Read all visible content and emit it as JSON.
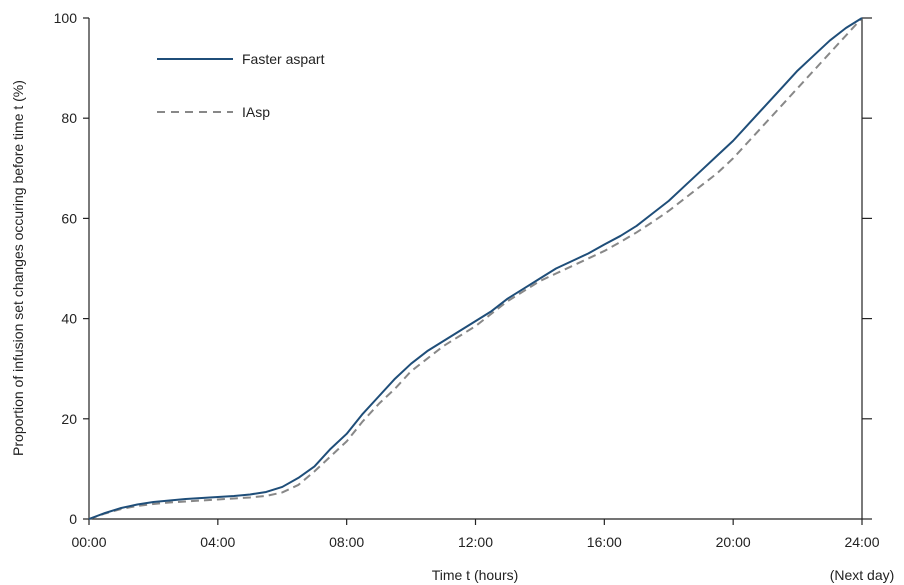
{
  "chart_data": {
    "type": "line",
    "xlabel": "Time t (hours)",
    "xlabel_suffix": "(Next day)",
    "ylabel": "Proportion of infusion set changes occuring before time t (%)",
    "xlim": [
      0,
      24
    ],
    "ylim": [
      0,
      100
    ],
    "x_ticks": [
      {
        "value": 0,
        "label": "00:00"
      },
      {
        "value": 4,
        "label": "04:00"
      },
      {
        "value": 8,
        "label": "08:00"
      },
      {
        "value": 12,
        "label": "12:00"
      },
      {
        "value": 16,
        "label": "16:00"
      },
      {
        "value": 20,
        "label": "20:00"
      },
      {
        "value": 24,
        "label": "24:00"
      }
    ],
    "y_ticks": [
      {
        "value": 0,
        "label": "0"
      },
      {
        "value": 20,
        "label": "20"
      },
      {
        "value": 40,
        "label": "40"
      },
      {
        "value": 60,
        "label": "60"
      },
      {
        "value": 80,
        "label": "80"
      },
      {
        "value": 100,
        "label": "100"
      }
    ],
    "grid": false,
    "legend_position": "top-left",
    "series": [
      {
        "name": "Faster aspart",
        "color": "#1f4e79",
        "style": "solid",
        "x": [
          0,
          0.5,
          1,
          1.5,
          2,
          2.5,
          3,
          3.5,
          4,
          4.5,
          5,
          5.5,
          6,
          6.5,
          7,
          7.5,
          8,
          8.5,
          9,
          9.5,
          10,
          10.5,
          11,
          11.5,
          12,
          12.5,
          13,
          13.5,
          14,
          14.5,
          15,
          15.5,
          16,
          16.5,
          17,
          17.5,
          18,
          18.5,
          19,
          19.5,
          20,
          20.5,
          21,
          21.5,
          22,
          22.5,
          23,
          23.5,
          24
        ],
        "y": [
          0,
          1.2,
          2.2,
          2.9,
          3.4,
          3.7,
          4.0,
          4.2,
          4.4,
          4.6,
          4.9,
          5.4,
          6.4,
          8.2,
          10.5,
          14.0,
          17.0,
          21.0,
          24.5,
          28.0,
          31.0,
          33.5,
          35.5,
          37.5,
          39.5,
          41.5,
          44.0,
          46.0,
          48.0,
          50.0,
          51.5,
          53.0,
          54.8,
          56.5,
          58.5,
          61.0,
          63.5,
          66.5,
          69.5,
          72.5,
          75.5,
          79.0,
          82.5,
          86.0,
          89.5,
          92.5,
          95.5,
          98.0,
          100
        ]
      },
      {
        "name": "IAsp",
        "color": "#888888",
        "style": "dashed",
        "x": [
          0,
          0.5,
          1,
          1.5,
          2,
          2.5,
          3,
          3.5,
          4,
          4.5,
          5,
          5.5,
          6,
          6.5,
          7,
          7.5,
          8,
          8.5,
          9,
          9.5,
          10,
          10.5,
          11,
          11.5,
          12,
          12.5,
          13,
          13.5,
          14,
          14.5,
          15,
          15.5,
          16,
          16.5,
          17,
          17.5,
          18,
          18.5,
          19,
          19.5,
          20,
          20.5,
          21,
          21.5,
          22,
          22.5,
          23,
          23.5,
          24
        ],
        "y": [
          0,
          1.1,
          2.0,
          2.6,
          3.0,
          3.3,
          3.5,
          3.7,
          3.9,
          4.1,
          4.3,
          4.6,
          5.3,
          6.8,
          9.5,
          12.5,
          15.5,
          19.5,
          23.0,
          26.0,
          29.5,
          32.0,
          34.5,
          36.5,
          38.5,
          41.0,
          43.5,
          45.5,
          47.5,
          49.0,
          50.5,
          52.0,
          53.5,
          55.3,
          57.2,
          59.3,
          61.5,
          64.0,
          66.5,
          69.0,
          72.0,
          75.5,
          79.0,
          82.5,
          86.0,
          89.5,
          93.0,
          96.5,
          100
        ]
      }
    ]
  }
}
